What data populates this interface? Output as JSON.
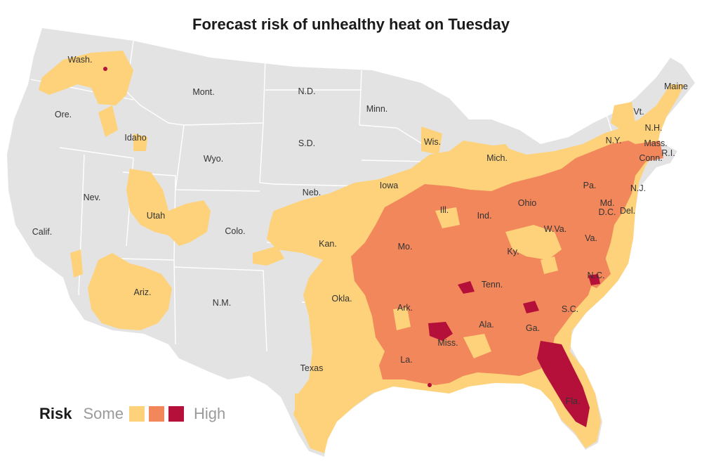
{
  "title": "Forecast risk of unhealthy heat on Tuesday",
  "legend": {
    "title": "Risk",
    "low_label": "Some",
    "high_label": "High",
    "colors": [
      "#fdd27a",
      "#f2875b",
      "#b5103a"
    ]
  },
  "colors": {
    "land": "#e3e3e3",
    "borders": "#ffffff",
    "some": "#fdd27a",
    "moderate": "#f2875b",
    "high": "#b5103a"
  },
  "states": {
    "wash": "Wash.",
    "ore": "Ore.",
    "idaho": "Idaho",
    "mont": "Mont.",
    "nd": "N.D.",
    "minn": "Minn.",
    "sd": "S.D.",
    "wyo": "Wyo.",
    "nev": "Nev.",
    "calif": "Calif.",
    "utah": "Utah",
    "colo": "Colo.",
    "neb": "Neb.",
    "kan": "Kan.",
    "iowa": "Iowa",
    "wis": "Wis.",
    "mich": "Mich.",
    "ill": "Ill.",
    "ind": "Ind.",
    "ohio": "Ohio",
    "pa": "Pa.",
    "ny": "N.Y.",
    "nj": "N.J.",
    "vt": "Vt.",
    "nh": "N.H.",
    "maine": "Maine",
    "mass": "Mass.",
    "ri": "R.I.",
    "conn": "Conn.",
    "md": "Md.",
    "dc": "D.C.",
    "del": "Del.",
    "wva": "W.Va.",
    "va": "Va.",
    "ky": "Ky.",
    "mo": "Mo.",
    "tenn": "Tenn.",
    "nc": "N.C.",
    "sc": "S.C.",
    "ga": "Ga.",
    "ala": "Ala.",
    "miss": "Miss.",
    "ark": "Ark.",
    "la": "La.",
    "okla": "Okla.",
    "texas": "Texas",
    "nm": "N.M.",
    "ariz": "Ariz.",
    "fla": "Fla."
  }
}
